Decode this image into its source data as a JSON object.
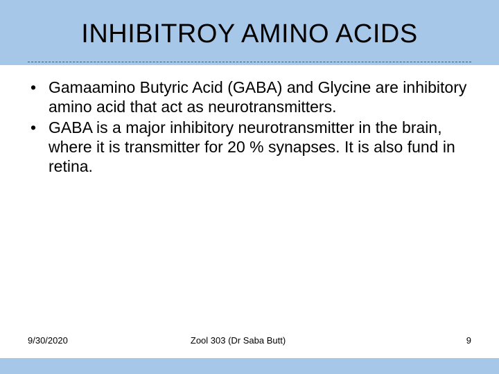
{
  "slide": {
    "title": "INHIBITROY AMINO ACIDS",
    "bullets": [
      "Gamaamino Butyric Acid (GABA) and Glycine are inhibitory amino acid that act as neurotransmitters.",
      "GABA is a major inhibitory neurotransmitter in the brain, where it is transmitter for 20 % synapses. It is also fund in retina."
    ],
    "footer": {
      "date": "9/30/2020",
      "center": "Zool 303 (Dr Saba Butt)",
      "page": "9"
    },
    "colors": {
      "header_bg": "#a6c7e8",
      "content_bg": "#ffffff",
      "text": "#000000",
      "divider": "#555555"
    },
    "typography": {
      "title_fontsize": 38,
      "body_fontsize": 23,
      "footer_fontsize": 13,
      "font_family": "Arial"
    }
  }
}
